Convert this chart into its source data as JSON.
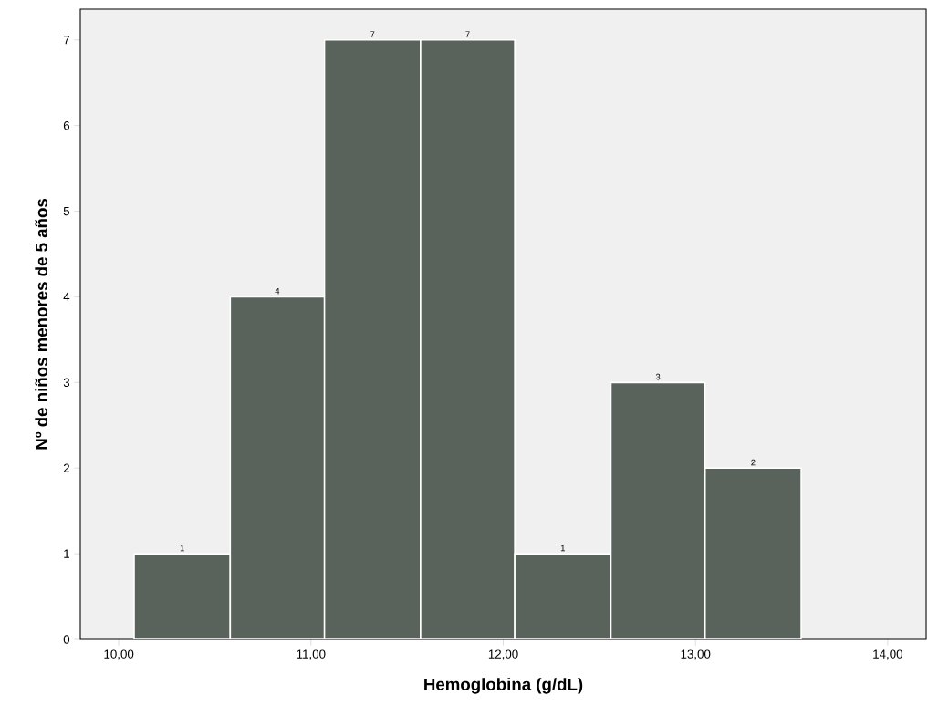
{
  "chart_data": {
    "type": "histogram",
    "xlabel": "Hemoglobina (g/dL)",
    "ylabel": "Nº de niños menores de 5 años",
    "bins": [
      10.08,
      10.58,
      11.07,
      11.57,
      12.06,
      12.56,
      13.05,
      13.55
    ],
    "values": [
      1,
      4,
      7,
      7,
      1,
      3,
      2
    ],
    "color": "#5a625c",
    "data_labels": true,
    "xlim": [
      9.8,
      14.2
    ],
    "ylim": [
      0,
      7.36
    ],
    "xticks": [
      {
        "value": 10,
        "label": "10,00"
      },
      {
        "value": 11,
        "label": "11,00"
      },
      {
        "value": 12,
        "label": "12,00"
      },
      {
        "value": 13,
        "label": "13,00"
      },
      {
        "value": 14,
        "label": "14,00"
      }
    ],
    "yticks": [
      0,
      1,
      2,
      3,
      4,
      5,
      6,
      7
    ],
    "grid": false
  }
}
